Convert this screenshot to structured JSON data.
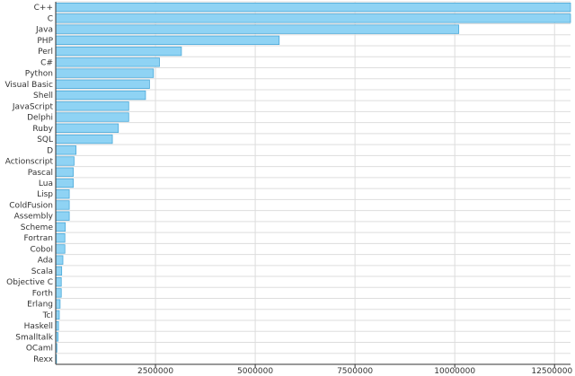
{
  "chart_data": {
    "type": "bar",
    "orientation": "horizontal",
    "title": "",
    "xlabel": "",
    "ylabel": "",
    "grid": true,
    "legend": "none",
    "xlim": [
      0,
      12900000
    ],
    "xticks": [
      2500000,
      5000000,
      7500000,
      10000000,
      12500000
    ],
    "xtick_labels": [
      "2500000",
      "5000000",
      "7500000",
      "10000000",
      "12500000"
    ],
    "categories": [
      "C++",
      "C",
      "Java",
      "PHP",
      "Perl",
      "C#",
      "Python",
      "Visual Basic",
      "Shell",
      "JavaScript",
      "Delphi",
      "Ruby",
      "SQL",
      "D",
      "Actionscript",
      "Pascal",
      "Lua",
      "Lisp",
      "ColdFusion",
      "Assembly",
      "Scheme",
      "Fortran",
      "Cobol",
      "Ada",
      "Scala",
      "Objective C",
      "Forth",
      "Erlang",
      "Tcl",
      "Haskell",
      "Smalltalk",
      "OCaml",
      "Rexx"
    ],
    "values": [
      12900000,
      12900000,
      10100000,
      5600000,
      3150000,
      2600000,
      2450000,
      2350000,
      2250000,
      1830000,
      1830000,
      1570000,
      1420000,
      510000,
      460000,
      440000,
      440000,
      340000,
      340000,
      340000,
      240000,
      230000,
      230000,
      180000,
      150000,
      140000,
      140000,
      110000,
      90000,
      70000,
      60000,
      30000,
      20000
    ],
    "colors": {
      "bar_fill": "#8fd3f4",
      "bar_stroke": "#4aa8d8",
      "grid": "#dddddd",
      "axis": "#333333"
    }
  }
}
